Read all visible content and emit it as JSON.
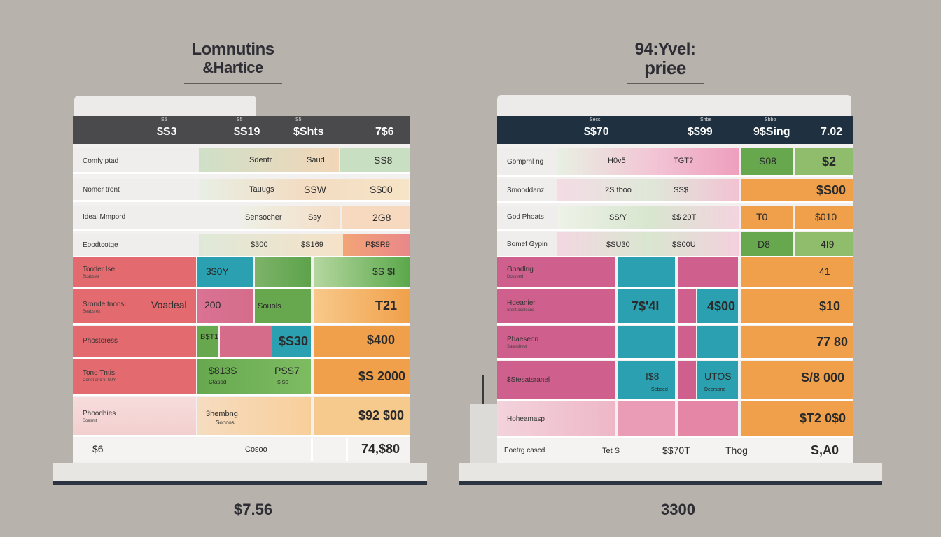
{
  "left": {
    "title_line1": "Lomnutins",
    "title_line2": "&Hartice",
    "header": {
      "tiny": [
        "S5",
        "S5",
        "S5"
      ],
      "values": [
        "$S3",
        "$S19",
        "$Shts",
        "7$6"
      ]
    },
    "rows": [
      {
        "label": "Comfy ptad",
        "values": [
          "Sdentr",
          "Saud",
          "SS8"
        ]
      },
      {
        "label": "Nomer tront",
        "values": [
          "Tauugs",
          "SSW",
          "S$00"
        ]
      },
      {
        "label": "Ideal Mmpord",
        "values": [
          "Sensocher",
          "Ssy",
          "2G8"
        ]
      },
      {
        "label": "Eoodtcotge",
        "values": [
          "$300",
          "$S169",
          "P$SR9"
        ]
      },
      {
        "label": "Tootler Ise",
        "sub": "Scabsee",
        "values": [
          "3$0Y",
          "$S $I"
        ]
      },
      {
        "label": "Sronde tnonsl",
        "sub": "Seabsrek",
        "label2": "Voadeal",
        "values": [
          "200",
          "Souols",
          "T21"
        ]
      },
      {
        "label": "Phostoress",
        "values": [
          "B$T1",
          "$S30",
          "$400"
        ]
      },
      {
        "label": "Tono Tntis",
        "sub": "Conet and ti, $UY",
        "values": [
          "$813S",
          "Ctasod",
          "PSS7",
          "S SS",
          "$S 2000"
        ]
      },
      {
        "label": "Phoodhies",
        "sub": "Soesmt",
        "values": [
          "3hembng",
          "Sopcos",
          "$92 $00"
        ]
      }
    ],
    "footer": {
      "left": "$6",
      "mid": "Cosoo",
      "right": "74,$80"
    },
    "price": "$7.56"
  },
  "right": {
    "title_line1": "94:Yvel:",
    "title_line2": "priee",
    "header": {
      "tiny": [
        "Secs",
        "Shbe",
        "Sbbo"
      ],
      "values": [
        "$$70",
        "$$99",
        "9$Sing",
        "7.02"
      ]
    },
    "rows": [
      {
        "label": "Gomprnl ng",
        "values": [
          "H0v5",
          "TGT?",
          "S08",
          "$2"
        ]
      },
      {
        "label": "Smooddanz",
        "values": [
          "2S tboo",
          "SS$",
          "$S00"
        ]
      },
      {
        "label": "God Phoats",
        "values": [
          "SS/Y",
          "$$ 20T",
          "T0",
          "$010"
        ]
      },
      {
        "label": "Bomef Gypin",
        "values": [
          "$SU30",
          "$S00U",
          "D8",
          "4I9"
        ]
      },
      {
        "label": "Goadlng",
        "sub": "Dosysed",
        "values": [
          "41"
        ]
      },
      {
        "label": "Hdeanier",
        "sub": "Stest aselsand",
        "values": [
          "7$'4I",
          "4$00",
          "$10"
        ]
      },
      {
        "label": "Phaeseon",
        "sub": "Saaesheer",
        "values": [
          "77 80"
        ]
      },
      {
        "label": "$Stesatsranel",
        "values": [
          "I$8",
          "Sebsed",
          "UTOS",
          "Deersone",
          "S/8 000"
        ]
      },
      {
        "label": "Hoheamasp",
        "values": [
          "$T2 0$0"
        ]
      }
    ],
    "footer": {
      "left": "Eoetrg cascd",
      "mid1": "Tet S",
      "mid2": "$$70T",
      "mid3": "Thog",
      "right": "S,A0"
    },
    "price": "3300"
  },
  "colors": {
    "background": "#b8b2ad",
    "red": "#e36b6f",
    "green": "#67a84f",
    "teal": "#2aa0b0",
    "orange": "#f0a04a",
    "pink": "#cf5f8c",
    "navy": "#1f3140"
  }
}
